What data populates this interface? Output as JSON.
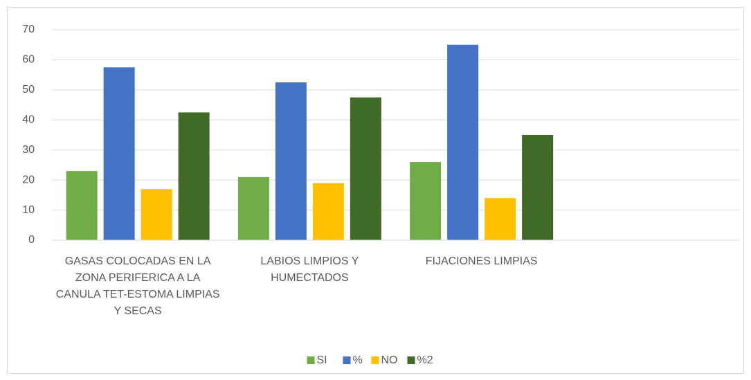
{
  "chart_data": {
    "type": "bar",
    "categories": [
      "GASAS COLOCADAS EN LA ZONA PERIFERICA A LA CANULA TET-ESTOMA LIMPIAS Y SECAS",
      "LABIOS LIMPIOS Y HUMECTADOS",
      "FIJACIONES LIMPIAS",
      null
    ],
    "series": [
      {
        "name": "SI",
        "color": "#70ad47",
        "values": [
          23,
          21,
          26,
          null
        ]
      },
      {
        "name": "%",
        "color": "#4472c4",
        "values": [
          57.5,
          52.5,
          65,
          null
        ]
      },
      {
        "name": "NO",
        "color": "#ffc000",
        "values": [
          17,
          19,
          14,
          null
        ]
      },
      {
        "name": "%2",
        "color": "#3f6b26",
        "values": [
          42.5,
          47.5,
          35,
          null
        ]
      }
    ],
    "ylim": [
      0,
      70
    ],
    "yticks": [
      0,
      10,
      20,
      30,
      40,
      50,
      60,
      70
    ],
    "grid": true,
    "legend": "bottom"
  }
}
